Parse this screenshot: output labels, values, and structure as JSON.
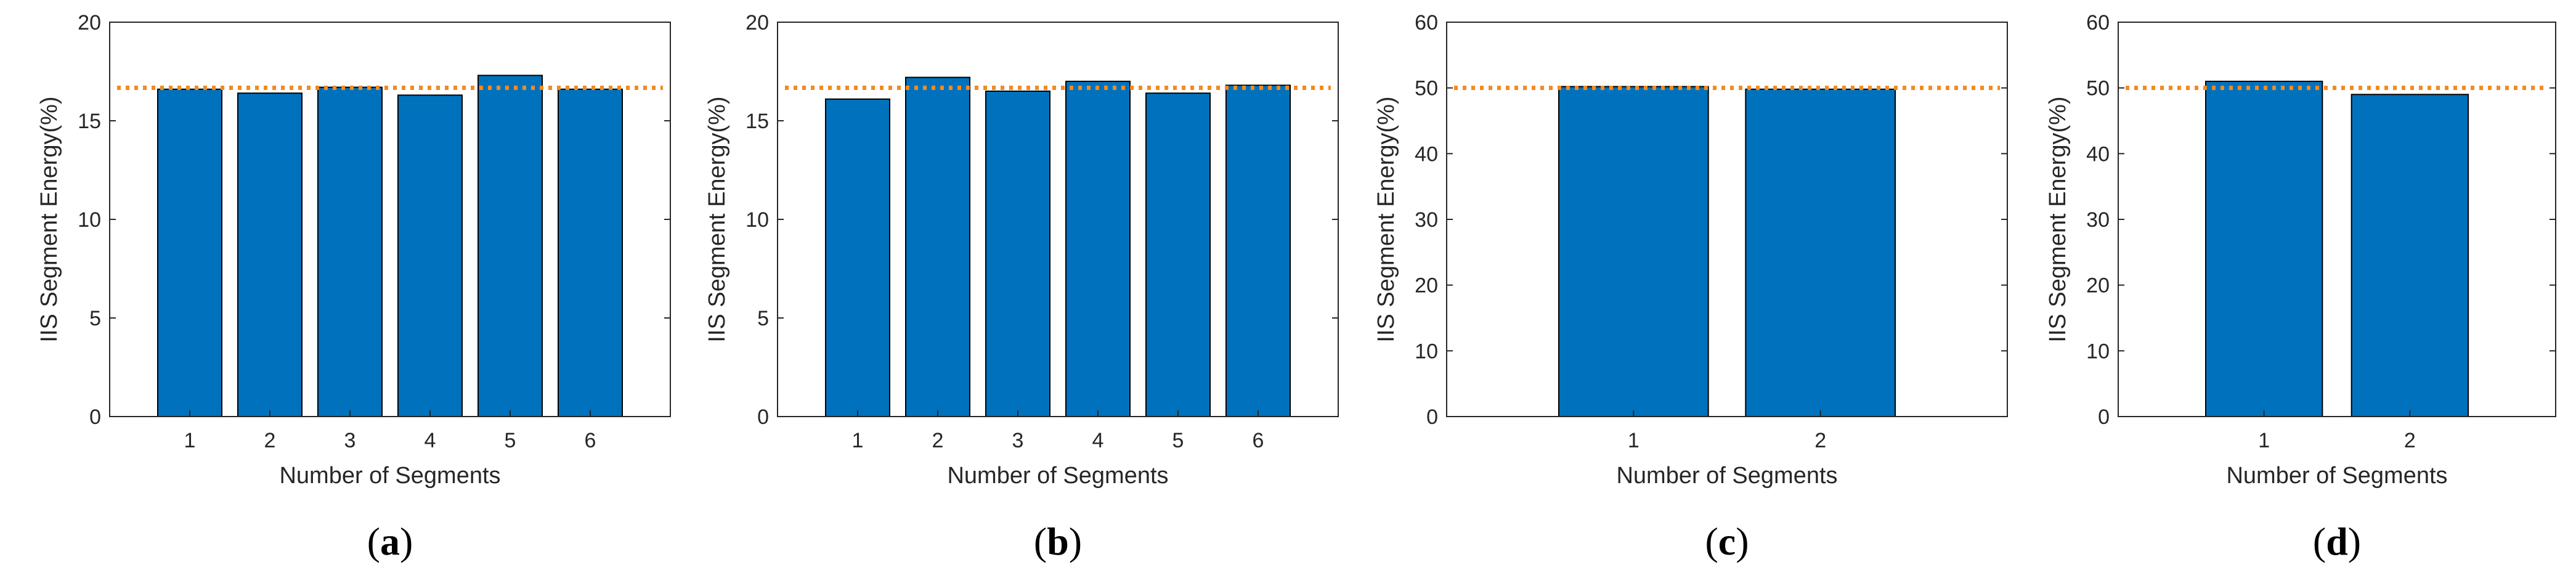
{
  "figure": {
    "bar_color": "#0072BD",
    "bar_edge_color": "#000000",
    "reference_line_color": "#F28A1E",
    "axis_color": "#262626"
  },
  "chart_data": [
    {
      "type": "bar",
      "panel_label": "a",
      "xlabel": "Number of Segments",
      "ylabel": "IIS Segment Energy(%)",
      "categories": [
        "1",
        "2",
        "3",
        "4",
        "5",
        "6"
      ],
      "values": [
        16.6,
        16.4,
        16.7,
        16.3,
        17.3,
        16.6
      ],
      "reference_line": 16.67,
      "ylim": [
        0,
        20
      ],
      "yticks": [
        "0",
        "5",
        "10",
        "15",
        "20"
      ],
      "xlim": [
        0,
        7
      ]
    },
    {
      "type": "bar",
      "panel_label": "b",
      "xlabel": "Number of Segments",
      "ylabel": "IIS Segment Energy(%)",
      "categories": [
        "1",
        "2",
        "3",
        "4",
        "5",
        "6"
      ],
      "values": [
        16.1,
        17.2,
        16.5,
        17.0,
        16.4,
        16.8
      ],
      "reference_line": 16.67,
      "ylim": [
        0,
        20
      ],
      "yticks": [
        "0",
        "5",
        "10",
        "15",
        "20"
      ],
      "xlim": [
        0,
        7
      ]
    },
    {
      "type": "bar",
      "panel_label": "c",
      "xlabel": "Number of Segments",
      "ylabel": "IIS Segment Energy(%)",
      "categories": [
        "1",
        "2"
      ],
      "values": [
        50.2,
        49.8
      ],
      "reference_line": 50,
      "ylim": [
        0,
        60
      ],
      "yticks": [
        "0",
        "10",
        "20",
        "30",
        "40",
        "50",
        "60"
      ],
      "xlim": [
        0,
        3
      ]
    },
    {
      "type": "bar",
      "panel_label": "d",
      "xlabel": "Number of Segments",
      "ylabel": "IIS Segment Energy(%)",
      "categories": [
        "1",
        "2"
      ],
      "values": [
        51.0,
        49.0
      ],
      "reference_line": 50,
      "ylim": [
        0,
        60
      ],
      "yticks": [
        "0",
        "10",
        "20",
        "30",
        "40",
        "50",
        "60"
      ],
      "xlim": [
        0,
        3
      ]
    }
  ]
}
